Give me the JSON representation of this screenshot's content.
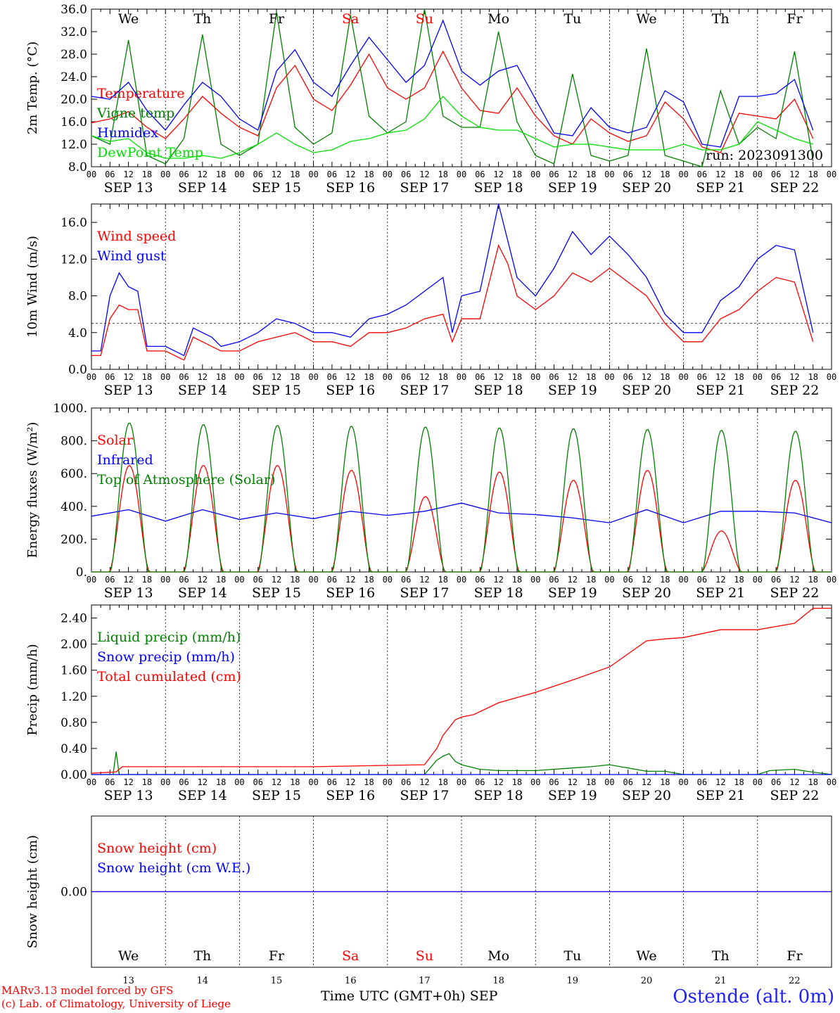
{
  "chart_data": [
    {
      "type": "line",
      "ylabel": "2m Temp. (°C)",
      "ylim": [
        8,
        36
      ],
      "yticks": [
        "8.0",
        "12.0",
        "16.0",
        "20.0",
        "24.0",
        "28.0",
        "32.0",
        "36.0"
      ],
      "grid": "vertical dashed at day boundaries",
      "legend_position": "left",
      "annotation": "run: 2023091300",
      "x_unit": "hours since 2023-09-13 00 UTC",
      "series": [
        {
          "name": "Temperature",
          "color": "#ff0000",
          "x": [
            0,
            6,
            12,
            18,
            24,
            30,
            36,
            42,
            48,
            54,
            60,
            66,
            72,
            78,
            84,
            90,
            96,
            102,
            108,
            114,
            120,
            126,
            132,
            138,
            144,
            150,
            156,
            162,
            168,
            174,
            180,
            186,
            192,
            198,
            204,
            210,
            216,
            222,
            228,
            234
          ],
          "y": [
            15.8,
            16.5,
            17.8,
            15.0,
            13.0,
            16.5,
            20.5,
            17.5,
            15.0,
            13.5,
            22.0,
            26.0,
            20.0,
            18.0,
            22.5,
            28.0,
            22.0,
            20.0,
            22.0,
            28.5,
            22.0,
            18.0,
            17.5,
            22.0,
            17.0,
            13.5,
            12.0,
            16.5,
            14.0,
            12.5,
            13.5,
            19.5,
            16.5,
            11.5,
            10.5,
            17.5,
            17.0,
            16.5,
            20.0,
            13.0
          ]
        },
        {
          "name": "Vigne temp",
          "color": "#008000",
          "x": [
            0,
            6,
            12,
            18,
            24,
            30,
            36,
            42,
            48,
            54,
            60,
            66,
            72,
            78,
            84,
            90,
            96,
            102,
            108,
            114,
            120,
            126,
            132,
            138,
            144,
            150,
            156,
            162,
            168,
            174,
            180,
            186,
            192,
            198,
            204,
            210,
            216,
            222,
            228,
            234
          ],
          "y": [
            13.5,
            12.0,
            30.5,
            10.0,
            8.5,
            13.0,
            31.5,
            12.0,
            10.0,
            12.0,
            35.5,
            15.0,
            12.0,
            14.0,
            35.0,
            17.0,
            14.0,
            16.0,
            36.0,
            17.0,
            15.0,
            15.0,
            32.0,
            16.0,
            10.0,
            8.5,
            24.5,
            10.0,
            9.0,
            10.0,
            29.0,
            10.0,
            9.0,
            8.0,
            21.5,
            12.0,
            15.0,
            13.0,
            28.5,
            9.0
          ]
        },
        {
          "name": "Humidex",
          "color": "#0000ff",
          "x": [
            0,
            6,
            12,
            18,
            24,
            30,
            36,
            42,
            48,
            54,
            60,
            66,
            72,
            78,
            84,
            90,
            96,
            102,
            108,
            114,
            120,
            126,
            132,
            138,
            144,
            150,
            156,
            162,
            168,
            174,
            180,
            186,
            192,
            198,
            204,
            210,
            216,
            222,
            228,
            234
          ],
          "y": [
            20.5,
            20.0,
            23.0,
            18.0,
            14.5,
            19.0,
            23.0,
            20.5,
            16.5,
            14.5,
            25.0,
            28.8,
            23.0,
            20.5,
            26.0,
            31.0,
            27.0,
            23.0,
            26.0,
            34.0,
            25.0,
            22.5,
            25.0,
            26.0,
            20.0,
            14.0,
            13.5,
            18.5,
            15.0,
            14.0,
            15.0,
            21.5,
            19.5,
            12.0,
            11.5,
            20.5,
            20.5,
            21.0,
            23.5,
            14.5
          ]
        },
        {
          "name": "DewPoint Temp",
          "color": "#00e000",
          "x": [
            0,
            6,
            12,
            18,
            24,
            30,
            36,
            42,
            48,
            54,
            60,
            66,
            72,
            78,
            84,
            90,
            96,
            102,
            108,
            114,
            120,
            126,
            132,
            138,
            144,
            150,
            156,
            162,
            168,
            174,
            180,
            186,
            192,
            198,
            204,
            210,
            216,
            222,
            228,
            234
          ],
          "y": [
            13.5,
            12.5,
            13.0,
            10.5,
            9.5,
            9.5,
            10.0,
            9.5,
            10.5,
            12.0,
            14.0,
            12.0,
            10.5,
            11.0,
            12.5,
            13.0,
            14.0,
            14.5,
            16.5,
            20.5,
            17.0,
            15.0,
            14.5,
            14.5,
            13.0,
            11.5,
            12.0,
            12.0,
            11.5,
            11.0,
            11.0,
            11.0,
            12.0,
            11.0,
            11.0,
            12.0,
            16.0,
            14.5,
            13.0,
            12.0
          ]
        }
      ]
    },
    {
      "type": "line",
      "ylabel": "10m Wind (m/s)",
      "ylim": [
        0,
        18
      ],
      "yticks": [
        "0.0",
        "4.0",
        "8.0",
        "12.0",
        "16.0"
      ],
      "reference_line": 5,
      "legend_position": "left",
      "x_unit": "hours since 2023-09-13 00 UTC",
      "series": [
        {
          "name": "Wind speed",
          "color": "#ff0000",
          "x": [
            0,
            3,
            6,
            9,
            12,
            15,
            18,
            21,
            24,
            30,
            33,
            36,
            39,
            42,
            48,
            54,
            60,
            66,
            72,
            78,
            84,
            90,
            96,
            102,
            108,
            114,
            117,
            120,
            126,
            132,
            135,
            138,
            144,
            150,
            156,
            162,
            168,
            174,
            180,
            186,
            192,
            198,
            204,
            210,
            216,
            222,
            228,
            234
          ],
          "y": [
            1.5,
            1.5,
            5.5,
            7.0,
            6.5,
            6.5,
            2.0,
            2.0,
            2.0,
            1.0,
            3.5,
            3.0,
            2.5,
            2.0,
            2.0,
            3.0,
            3.5,
            4.0,
            3.0,
            3.0,
            2.5,
            4.0,
            4.0,
            4.5,
            5.5,
            6.0,
            3.0,
            5.5,
            5.5,
            13.5,
            11.5,
            8.0,
            6.5,
            8.0,
            10.5,
            9.5,
            11.0,
            9.5,
            8.0,
            5.0,
            3.0,
            3.0,
            5.5,
            6.5,
            8.5,
            10.0,
            9.5,
            3.0
          ]
        },
        {
          "name": "Wind gust",
          "color": "#0000ff",
          "x": [
            0,
            3,
            6,
            9,
            12,
            15,
            18,
            21,
            24,
            30,
            33,
            36,
            39,
            42,
            48,
            54,
            60,
            66,
            72,
            78,
            84,
            90,
            96,
            102,
            108,
            114,
            117,
            120,
            126,
            132,
            135,
            138,
            144,
            150,
            156,
            162,
            168,
            174,
            180,
            186,
            192,
            198,
            204,
            210,
            216,
            222,
            228,
            234
          ],
          "y": [
            2.0,
            2.0,
            8.0,
            10.5,
            9.0,
            8.5,
            2.5,
            2.5,
            2.5,
            1.5,
            4.5,
            4.0,
            3.5,
            2.5,
            3.0,
            4.0,
            5.5,
            5.0,
            4.0,
            4.0,
            3.5,
            5.5,
            6.0,
            7.0,
            8.5,
            10.0,
            4.0,
            8.0,
            8.5,
            18.0,
            14.0,
            10.0,
            8.0,
            11.0,
            15.0,
            12.5,
            14.5,
            12.5,
            10.0,
            6.0,
            4.0,
            4.0,
            7.5,
            9.0,
            12.0,
            13.5,
            13.0,
            4.0
          ]
        }
      ]
    },
    {
      "type": "line",
      "ylabel": "Energy fluxes (W/m²)",
      "ylim": [
        0,
        1000
      ],
      "yticks": [
        "0.",
        "200.",
        "400.",
        "600.",
        "800.",
        "1000."
      ],
      "legend_position": "left",
      "x_unit": "hours since 2023-09-13 00 UTC",
      "daily_solar_peak": [
        650,
        650,
        650,
        620,
        460,
        610,
        560,
        620,
        250,
        560
      ],
      "daily_toa_peak": [
        910,
        900,
        895,
        890,
        885,
        880,
        875,
        870,
        865,
        860
      ],
      "series": [
        {
          "name": "Solar",
          "color": "#ff0000"
        },
        {
          "name": "Infrared",
          "color": "#0000ff",
          "x": [
            0,
            12,
            24,
            36,
            48,
            60,
            72,
            84,
            96,
            108,
            120,
            132,
            144,
            156,
            168,
            180,
            192,
            204,
            216,
            228,
            240
          ],
          "y": [
            340,
            380,
            310,
            380,
            320,
            360,
            325,
            370,
            345,
            370,
            420,
            360,
            350,
            330,
            300,
            380,
            300,
            370,
            370,
            360,
            300
          ]
        },
        {
          "name": "Top of Atmosphere (Solar)",
          "color": "#008000"
        }
      ]
    },
    {
      "type": "line",
      "ylabel": "Precip (mm/h)",
      "ylim": [
        0,
        2.6
      ],
      "yticks": [
        "0.00",
        "0.40",
        "0.80",
        "1.20",
        "1.60",
        "2.00",
        "2.40"
      ],
      "legend_position": "left",
      "x_unit": "hours since 2023-09-13 00 UTC",
      "series": [
        {
          "name": "Liquid precip (mm/h)",
          "color": "#008000",
          "x": [
            0,
            7,
            8,
            9,
            10,
            24,
            108,
            112,
            114,
            116,
            118,
            120,
            126,
            132,
            144,
            156,
            162,
            168,
            174,
            180,
            186,
            192,
            216,
            220,
            228,
            232,
            240
          ],
          "y": [
            0,
            0,
            0.35,
            0,
            0,
            0,
            0,
            0.22,
            0.28,
            0.32,
            0.2,
            0.15,
            0.08,
            0.06,
            0.06,
            0.1,
            0.12,
            0.15,
            0.1,
            0.05,
            0.05,
            0,
            0,
            0.06,
            0.08,
            0.05,
            0
          ]
        },
        {
          "name": "Snow precip (mm/h)",
          "color": "#0000ff",
          "x": [
            0,
            240
          ],
          "y": [
            0,
            0
          ]
        },
        {
          "name": "Total cumulated (cm)",
          "color": "#ff0000",
          "x": [
            0,
            8,
            10,
            24,
            48,
            72,
            96,
            108,
            112,
            114,
            118,
            120,
            124,
            132,
            144,
            156,
            168,
            174,
            180,
            186,
            192,
            204,
            216,
            228,
            234,
            240
          ],
          "y": [
            0.02,
            0.04,
            0.12,
            0.12,
            0.12,
            0.12,
            0.14,
            0.15,
            0.4,
            0.6,
            0.84,
            0.88,
            0.92,
            1.1,
            1.26,
            1.45,
            1.65,
            1.85,
            2.05,
            2.08,
            2.1,
            2.22,
            2.22,
            2.32,
            2.55,
            2.55
          ]
        }
      ]
    },
    {
      "type": "line",
      "ylabel": "Snow height (cm)",
      "ylim": [
        -1,
        1
      ],
      "yticks": [
        "0.00"
      ],
      "legend_position": "left",
      "series": [
        {
          "name": "Snow height (cm)",
          "color": "#ff0000",
          "x": [
            0,
            240
          ],
          "y": [
            0,
            0
          ]
        },
        {
          "name": "Snow height (cm W.E.)",
          "color": "#0000ff",
          "x": [
            0,
            240
          ],
          "y": [
            0,
            0
          ]
        }
      ]
    }
  ],
  "days": {
    "hour_ticks": [
      "00",
      "06",
      "12",
      "18"
    ],
    "dates": [
      "SEP 13",
      "SEP 14",
      "SEP 15",
      "SEP 16",
      "SEP 17",
      "SEP 18",
      "SEP 19",
      "SEP 20",
      "SEP 21",
      "SEP 22"
    ],
    "weekdays": [
      "We",
      "Th",
      "Fr",
      "Sa",
      "Su",
      "Mo",
      "Tu",
      "We",
      "Th",
      "Fr"
    ],
    "weekend_color": "#ff0000",
    "numbers": [
      "13",
      "14",
      "15",
      "16",
      "17",
      "18",
      "19",
      "20",
      "21",
      "22"
    ]
  },
  "footer": {
    "credit_line1": "MARv3.13 model forced by GFS",
    "credit_line2": "(c) Lab. of Climatology, University of Liege",
    "time_label": "Time UTC (GMT+0h)",
    "month": "SEP",
    "station": "Ostende (alt. 0m)"
  }
}
